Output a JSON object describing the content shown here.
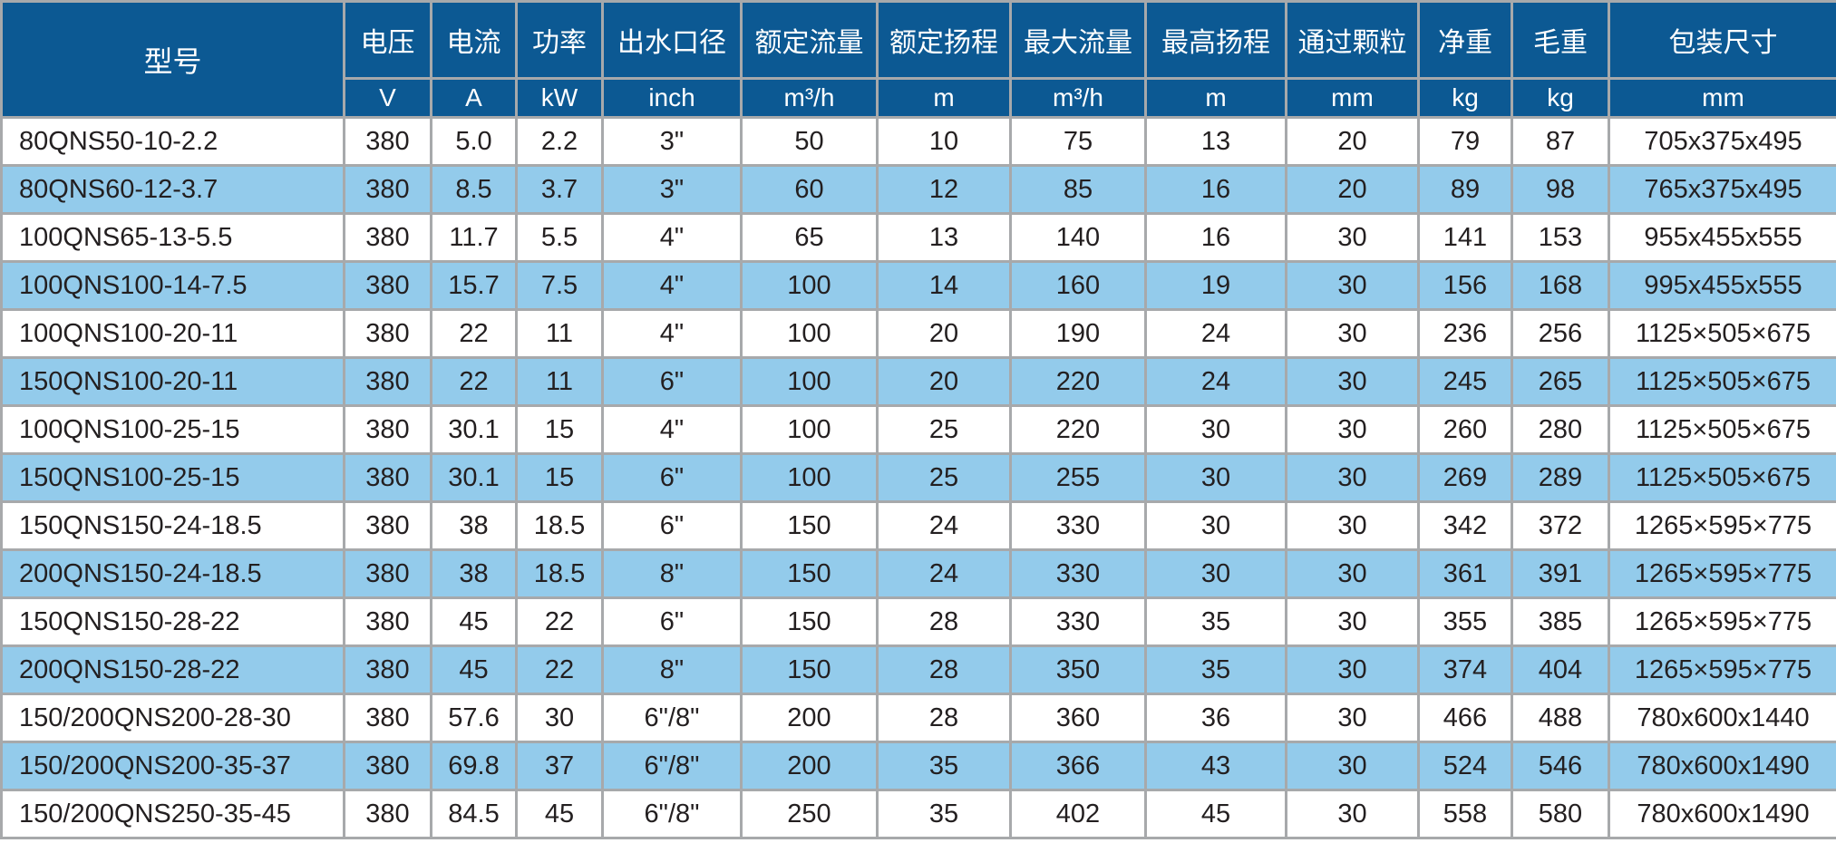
{
  "table": {
    "model_header": "型号",
    "columns": [
      {
        "label": "电压",
        "unit": "V"
      },
      {
        "label": "电流",
        "unit": "A"
      },
      {
        "label": "功率",
        "unit": "kW"
      },
      {
        "label": "出水口径",
        "unit": "inch"
      },
      {
        "label": "额定流量",
        "unit": "m³/h"
      },
      {
        "label": "额定扬程",
        "unit": "m"
      },
      {
        "label": "最大流量",
        "unit": "m³/h"
      },
      {
        "label": "最高扬程",
        "unit": "m"
      },
      {
        "label": "通过颗粒",
        "unit": "mm"
      },
      {
        "label": "净重",
        "unit": "kg"
      },
      {
        "label": "毛重",
        "unit": "kg"
      },
      {
        "label": "包装尺寸",
        "unit": "mm"
      }
    ],
    "rows": [
      [
        "80QNS50-10-2.2",
        "380",
        "5.0",
        "2.2",
        "3\"",
        "50",
        "10",
        "75",
        "13",
        "20",
        "79",
        "87",
        "705x375x495"
      ],
      [
        "80QNS60-12-3.7",
        "380",
        "8.5",
        "3.7",
        "3\"",
        "60",
        "12",
        "85",
        "16",
        "20",
        "89",
        "98",
        "765x375x495"
      ],
      [
        "100QNS65-13-5.5",
        "380",
        "11.7",
        "5.5",
        "4\"",
        "65",
        "13",
        "140",
        "16",
        "30",
        "141",
        "153",
        "955x455x555"
      ],
      [
        "100QNS100-14-7.5",
        "380",
        "15.7",
        "7.5",
        "4\"",
        "100",
        "14",
        "160",
        "19",
        "30",
        "156",
        "168",
        "995x455x555"
      ],
      [
        "100QNS100-20-11",
        "380",
        "22",
        "11",
        "4\"",
        "100",
        "20",
        "190",
        "24",
        "30",
        "236",
        "256",
        "1125×505×675"
      ],
      [
        "150QNS100-20-11",
        "380",
        "22",
        "11",
        "6\"",
        "100",
        "20",
        "220",
        "24",
        "30",
        "245",
        "265",
        "1125×505×675"
      ],
      [
        "100QNS100-25-15",
        "380",
        "30.1",
        "15",
        "4\"",
        "100",
        "25",
        "220",
        "30",
        "30",
        "260",
        "280",
        "1125×505×675"
      ],
      [
        "150QNS100-25-15",
        "380",
        "30.1",
        "15",
        "6\"",
        "100",
        "25",
        "255",
        "30",
        "30",
        "269",
        "289",
        "1125×505×675"
      ],
      [
        "150QNS150-24-18.5",
        "380",
        "38",
        "18.5",
        "6\"",
        "150",
        "24",
        "330",
        "30",
        "30",
        "342",
        "372",
        "1265×595×775"
      ],
      [
        "200QNS150-24-18.5",
        "380",
        "38",
        "18.5",
        "8\"",
        "150",
        "24",
        "330",
        "30",
        "30",
        "361",
        "391",
        "1265×595×775"
      ],
      [
        "150QNS150-28-22",
        "380",
        "45",
        "22",
        "6\"",
        "150",
        "28",
        "330",
        "35",
        "30",
        "355",
        "385",
        "1265×595×775"
      ],
      [
        "200QNS150-28-22",
        "380",
        "45",
        "22",
        "8\"",
        "150",
        "28",
        "350",
        "35",
        "30",
        "374",
        "404",
        "1265×595×775"
      ],
      [
        "150/200QNS200-28-30",
        "380",
        "57.6",
        "30",
        "6\"/8\"",
        "200",
        "28",
        "360",
        "36",
        "30",
        "466",
        "488",
        "780x600x1440"
      ],
      [
        "150/200QNS200-35-37",
        "380",
        "69.8",
        "37",
        "6\"/8\"",
        "200",
        "35",
        "366",
        "43",
        "30",
        "524",
        "546",
        "780x600x1490"
      ],
      [
        "150/200QNS250-35-45",
        "380",
        "84.5",
        "45",
        "6\"/8\"",
        "250",
        "35",
        "402",
        "45",
        "30",
        "558",
        "580",
        "780x600x1490"
      ]
    ]
  },
  "colors": {
    "header": "#0c5993",
    "stripe": "#93cbeb",
    "border": "#a7a9ab"
  }
}
